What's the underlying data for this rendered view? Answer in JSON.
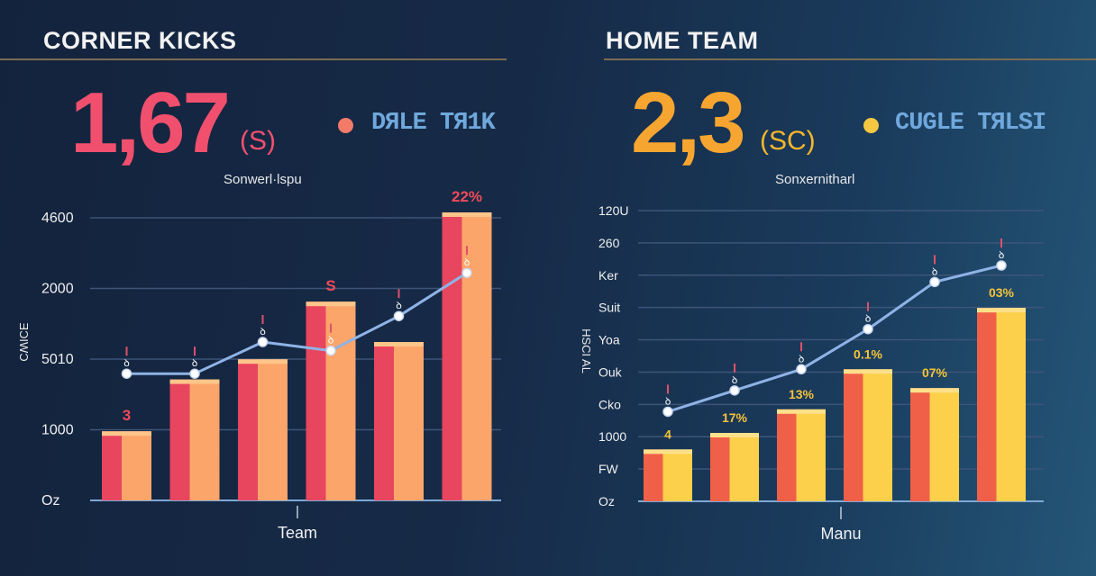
{
  "left": {
    "title": "CORNER KICKS",
    "big_value": "1,67",
    "big_unit": "(S)",
    "legend_label": "DЯLE TЯ1K",
    "subtitle": "Sonwerl·lspu",
    "colors": {
      "accent": "#f0506e",
      "bar_left": "#e8455e",
      "bar_right": "#fca56a",
      "bar_top": "#fdc58a",
      "line": "#8fb3e6"
    },
    "chart_data": {
      "type": "bar",
      "y_tick_labels": [
        "4600",
        "2000",
        "5010",
        "1000",
        "Oz"
      ],
      "y_axis_label": "ƎƆIWƆ",
      "xlabel": "Team",
      "values": [
        0.24,
        0.42,
        0.49,
        0.69,
        0.55,
        1.0
      ],
      "line_values": [
        0.44,
        0.44,
        0.55,
        0.52,
        0.64,
        0.79
      ],
      "bar_labels": [
        "3",
        "",
        "",
        "S",
        "",
        "22%"
      ],
      "marker_label": "ꝺ",
      "ylim": [
        0,
        1
      ],
      "grid": true
    }
  },
  "right": {
    "title": "HOME TEAM",
    "big_value": "2,3",
    "big_unit": "(SC)",
    "legend_label": "CUGLE TЯLSI",
    "subtitle": "Sonxernitharl",
    "colors": {
      "accent": "#f6a630",
      "bar_left": "#f06048",
      "bar_right": "#fcd04a",
      "bar_top": "#fde08a",
      "line": "#8fb3e6"
    },
    "chart_data": {
      "type": "bar",
      "y_tick_labels": [
        "120U",
        "260",
        "Ker",
        "Suit",
        "Yoa",
        "Ouk",
        "Cko",
        "1000",
        "FW",
        "Oz"
      ],
      "y_axis_label": "HSCI AL",
      "xlabel": "Manu",
      "values": [
        0.22,
        0.29,
        0.39,
        0.56,
        0.48,
        0.82
      ],
      "line_values": [
        0.38,
        0.47,
        0.56,
        0.73,
        0.93,
        1.0
      ],
      "bar_labels": [
        "4",
        "17%",
        "13%",
        "0.1%",
        "07%",
        "03%"
      ],
      "marker_label": "ꝺ",
      "ylim": [
        0,
        1
      ],
      "grid": true
    }
  }
}
